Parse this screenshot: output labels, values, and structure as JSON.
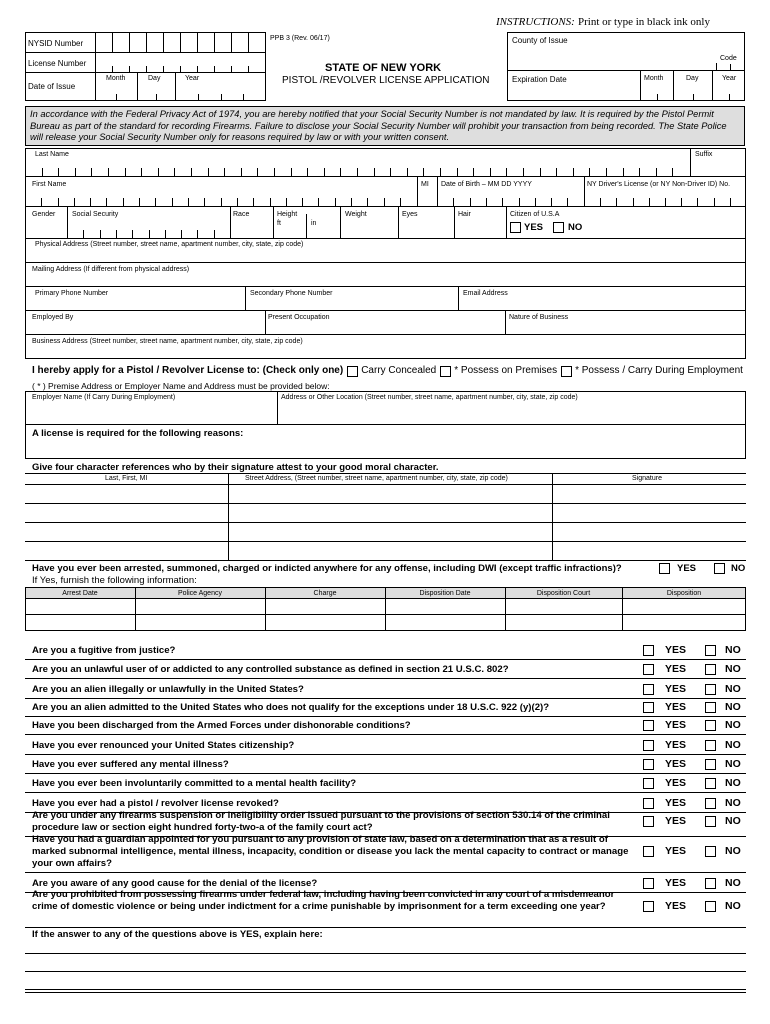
{
  "instructions": {
    "label": "INSTRUCTIONS:",
    "text": "Print or type in black ink only"
  },
  "header": {
    "nysid": "NYSID Number",
    "license_number": "License Number",
    "date_of_issue": "Date of Issue",
    "month": "Month",
    "day": "Day",
    "year": "Year",
    "form_id": "PPB 3 (Rev. 06/17)",
    "state": "STATE OF NEW YORK",
    "title": "PISTOL /REVOLVER LICENSE APPLICATION",
    "county": "County of Issue",
    "code": "Code",
    "expiration": "Expiration Date"
  },
  "privacy_notice": "In accordance with the Federal Privacy Act of 1974, you are hereby notified that your Social Security Number is not mandated by law. It is required by the Pistol Permit Bureau as part of the standard for recording Firearms. Failure to disclose your Social Security Number will prohibit your transaction from being recorded.  The State Police will release your Social Security Number only for reasons required by law or with your written consent.",
  "fields": {
    "last_name": "Last Name",
    "suffix": "Suffix",
    "first_name": "First Name",
    "mi": "MI",
    "dob": "Date of Birth – MM DD YYYY",
    "license_no": "NY Driver's License (or NY Non-Driver ID) No.",
    "gender": "Gender",
    "ssn": "Social Security",
    "race": "Race",
    "height": "Height",
    "ft": "ft",
    "in": "in",
    "weight": "Weight",
    "eyes": "Eyes",
    "hair": "Hair",
    "citizen": "Citizen of U.S.A",
    "physical_address": "Physical Address (Street number, street name, apartment number, city, state, zip code)",
    "mailing_address": "Mailing Address (If different from physical address)",
    "primary_phone": "Primary Phone Number",
    "secondary_phone": "Secondary Phone Number",
    "email": "Email Address",
    "employed_by": "Employed By",
    "occupation": "Present Occupation",
    "nature_of_business": "Nature of Business",
    "business_address": "Business Address (Street number, street name, apartment number, city, state, zip code)"
  },
  "answers": {
    "yes": "YES",
    "no": "NO"
  },
  "apply": {
    "label": "I hereby apply for a Pistol / Revolver License to: (Check only one)",
    "options": [
      "Carry Concealed",
      "* Possess on Premises",
      "* Possess / Carry During Employment"
    ],
    "note": "( * ) Premise Address or Employer Name and Address must be provided below:",
    "employer_name": "Employer Name (If Carry During Employment)",
    "address": "Address or Other Location  (Street number, street name, apartment number, city, state, zip code)"
  },
  "reasons": "A license is required for the following reasons:",
  "references": {
    "heading": "Give four character references who by their signature attest to your good moral character.",
    "columns": [
      "Last, First, MI",
      "Street Address,  (Street number, street name, apartment number, city, state, zip code)",
      "Signature"
    ]
  },
  "arrests": {
    "question": "Have you ever been arrested, summoned, charged or indicted anywhere for any offense, including DWI (except traffic infractions)?",
    "followup": "If Yes, furnish the following information:",
    "columns": [
      "Arrest Date",
      "Police Agency",
      "Charge",
      "Disposition Date",
      "Disposition Court",
      "Disposition"
    ]
  },
  "questions": [
    "Are you a fugitive from justice?",
    "Are you an unlawful user of or addicted to any controlled substance as defined in section 21 U.S.C. 802?",
    "Are you an alien illegally or unlawfully in the United States?",
    "Are you an alien admitted to the United States who does not qualify for the exceptions under 18 U.S.C. 922 (y)(2)?",
    "Have you been discharged from the Armed Forces under dishonorable conditions?",
    "Have you ever renounced your United States citizenship?",
    "Have you ever suffered any mental illness?",
    "Have you ever been involuntarily committed to a mental health facility?",
    "Have you ever had a pistol / revolver license revoked?",
    "Are you under any firearms suspension or ineligibility order issued pursuant to the provisions of section 530.14 of the criminal procedure law or section eight hundred forty-two-a of the family court act?",
    "Have you had a guardian appointed for you pursuant to any provision of state law, based on a determination that as a result of marked subnormal intelligence, mental illness, incapacity, condition or disease you lack the mental capacity to contract or manage your own affairs?",
    "Are you aware of any good cause for the denial of the license?",
    "Are you prohibited from possessing firearms under federal law, including having been convicted in any court of a misdemeanor crime of domestic violence or being under indictment for a crime punishable by imprisonment for a term exceeding one year?"
  ],
  "explain": "If the answer to any of the questions above is YES, explain here:"
}
